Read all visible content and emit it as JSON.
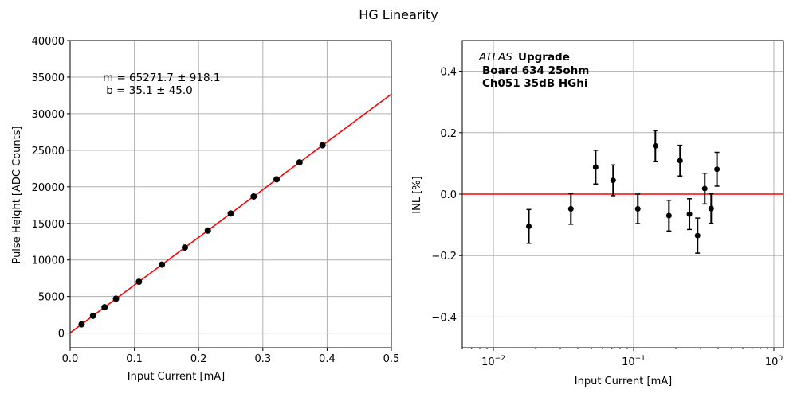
{
  "title": "HG Linearity",
  "chart_data": [
    {
      "type": "scatter",
      "xlabel": "Input Current [mA]",
      "ylabel": "Pulse Height [ADC Counts]",
      "xlim": [
        0,
        0.5
      ],
      "ylim": [
        -2000,
        40000
      ],
      "xticks": [
        "0.0",
        "0.1",
        "0.2",
        "0.3",
        "0.4",
        "0.5"
      ],
      "yticks": [
        "0",
        "5000",
        "10000",
        "15000",
        "20000",
        "25000",
        "30000",
        "35000",
        "40000"
      ],
      "grid": true,
      "x": [
        0.0179,
        0.0357,
        0.0536,
        0.0714,
        0.1071,
        0.1429,
        0.1786,
        0.2143,
        0.25,
        0.2857,
        0.3214,
        0.3571,
        0.3929
      ],
      "y": [
        1200,
        2370,
        3530,
        4700,
        7020,
        9360,
        11700,
        14020,
        16350,
        18680,
        21020,
        23340,
        25680
      ],
      "fit": {
        "m": 65271.7,
        "b": 35.1,
        "color": "#ff0000"
      },
      "annotation": [
        "m = 65271.7 ± 918.1",
        " b = 35.1 ± 45.0"
      ]
    },
    {
      "type": "scatter",
      "xlabel": "Input Current [mA]",
      "ylabel": "INL [%]",
      "xscale": "log",
      "xlim": [
        0.006,
        1.17
      ],
      "ylim": [
        -0.5,
        0.5
      ],
      "xticks": [
        "10^-2",
        "10^-1",
        "10^0"
      ],
      "yticks": [
        "−0.4",
        "−0.2",
        "0.0",
        "0.2",
        "0.4"
      ],
      "grid": true,
      "x": [
        0.0179,
        0.0357,
        0.0536,
        0.0714,
        0.1071,
        0.1429,
        0.1786,
        0.2143,
        0.25,
        0.2857,
        0.3214,
        0.3571,
        0.3929
      ],
      "y": [
        -0.105,
        -0.048,
        0.088,
        0.045,
        -0.048,
        0.157,
        -0.07,
        0.109,
        -0.065,
        -0.135,
        0.018,
        -0.047,
        0.081
      ],
      "yerr": [
        0.055,
        0.05,
        0.055,
        0.05,
        0.048,
        0.05,
        0.05,
        0.05,
        0.05,
        0.057,
        0.05,
        0.048,
        0.055
      ],
      "reference_line": {
        "y": 0,
        "color": "#ff0000"
      },
      "annotation": {
        "italic": "ATLAS",
        "bold": "Upgrade",
        "line2": "Board 634 25ohm",
        "line3": "Ch051 35dB HGhi"
      }
    }
  ]
}
